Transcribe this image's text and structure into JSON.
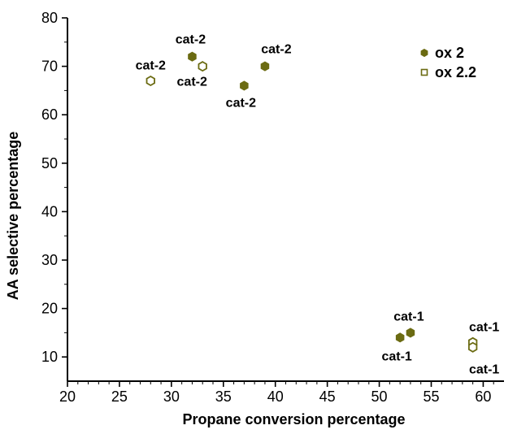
{
  "chart_data": {
    "type": "scatter",
    "xlabel": "Propane conversion percentage",
    "ylabel": "AA selective percentage",
    "xlim": [
      20,
      62
    ],
    "ylim": [
      5,
      80
    ],
    "xticks": [
      20,
      25,
      30,
      35,
      40,
      45,
      50,
      55,
      60
    ],
    "yticks": [
      10,
      20,
      30,
      40,
      50,
      60,
      70,
      80
    ],
    "grid": false,
    "legend_position": "top-right",
    "colors": {
      "marker": "#6b6b12",
      "axis": "#000000"
    },
    "series": [
      {
        "name": "ox 2",
        "marker": "filled-hexagon",
        "points": [
          {
            "x": 32,
            "y": 72,
            "label": "cat-2"
          },
          {
            "x": 39,
            "y": 70,
            "label": "cat-2"
          },
          {
            "x": 37,
            "y": 66,
            "label": "cat-2"
          },
          {
            "x": 53,
            "y": 15,
            "label": "cat-1"
          },
          {
            "x": 52,
            "y": 14,
            "label": "cat-1"
          }
        ]
      },
      {
        "name": "ox 2.2",
        "marker": "open-hexagon",
        "points": [
          {
            "x": 33,
            "y": 70,
            "label": "cat-2"
          },
          {
            "x": 28,
            "y": 67,
            "label": "cat-2"
          },
          {
            "x": 59,
            "y": 13,
            "label": "cat-1"
          },
          {
            "x": 59,
            "y": 12,
            "label": "cat-1"
          }
        ]
      }
    ]
  }
}
